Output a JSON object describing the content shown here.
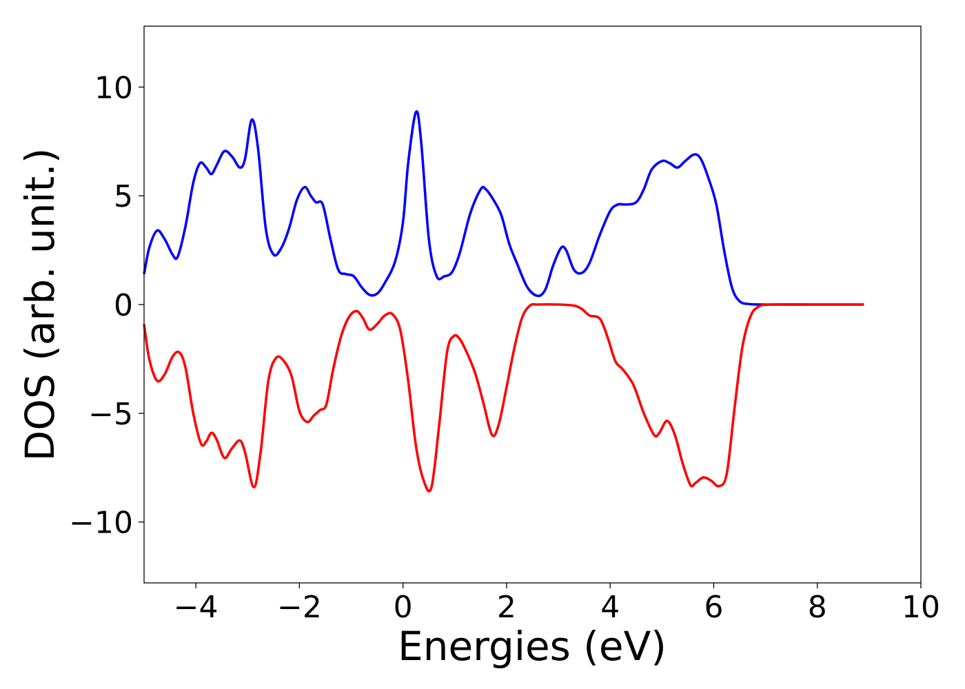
{
  "chart_data": {
    "type": "line",
    "title": "",
    "xlabel": "Energies (eV)",
    "ylabel": "DOS (arb. unit.)",
    "xlim": [
      -5,
      10
    ],
    "ylim": [
      -12.8,
      12.8
    ],
    "x_ticks": [
      -4,
      -2,
      0,
      2,
      4,
      6,
      8,
      10
    ],
    "x_tick_labels": [
      "−4",
      "−2",
      "0",
      "2",
      "4",
      "6",
      "8",
      "10"
    ],
    "y_ticks": [
      10,
      5,
      0,
      -5,
      -10
    ],
    "y_tick_labels": [
      "10",
      "5",
      "0",
      "−5",
      "−10"
    ],
    "grid": false,
    "legend": "none",
    "series": [
      {
        "color": "#0000ff",
        "points": [
          [
            -5.0,
            1.4
          ],
          [
            -4.9,
            2.6
          ],
          [
            -4.75,
            3.4
          ],
          [
            -4.6,
            3.0
          ],
          [
            -4.45,
            2.3
          ],
          [
            -4.35,
            2.2
          ],
          [
            -4.2,
            3.6
          ],
          [
            -4.05,
            5.6
          ],
          [
            -3.92,
            6.5
          ],
          [
            -3.8,
            6.3
          ],
          [
            -3.7,
            6.0
          ],
          [
            -3.6,
            6.4
          ],
          [
            -3.45,
            7.05
          ],
          [
            -3.3,
            6.8
          ],
          [
            -3.15,
            6.3
          ],
          [
            -3.05,
            6.7
          ],
          [
            -2.92,
            8.5
          ],
          [
            -2.8,
            7.2
          ],
          [
            -2.65,
            3.5
          ],
          [
            -2.5,
            2.3
          ],
          [
            -2.35,
            2.6
          ],
          [
            -2.2,
            3.5
          ],
          [
            -2.05,
            4.8
          ],
          [
            -1.9,
            5.4
          ],
          [
            -1.78,
            5.0
          ],
          [
            -1.68,
            4.7
          ],
          [
            -1.55,
            4.6
          ],
          [
            -1.4,
            3.0
          ],
          [
            -1.25,
            1.6
          ],
          [
            -1.1,
            1.4
          ],
          [
            -0.95,
            1.3
          ],
          [
            -0.8,
            0.8
          ],
          [
            -0.65,
            0.45
          ],
          [
            -0.5,
            0.5
          ],
          [
            -0.35,
            1.0
          ],
          [
            -0.15,
            2.0
          ],
          [
            0.0,
            3.8
          ],
          [
            0.1,
            6.5
          ],
          [
            0.25,
            8.85
          ],
          [
            0.35,
            7.5
          ],
          [
            0.5,
            3.0
          ],
          [
            0.65,
            1.3
          ],
          [
            0.8,
            1.3
          ],
          [
            0.95,
            1.5
          ],
          [
            1.1,
            2.4
          ],
          [
            1.3,
            4.2
          ],
          [
            1.5,
            5.3
          ],
          [
            1.6,
            5.3
          ],
          [
            1.75,
            4.8
          ],
          [
            1.9,
            4.1
          ],
          [
            2.05,
            2.8
          ],
          [
            2.2,
            1.9
          ],
          [
            2.4,
            0.8
          ],
          [
            2.6,
            0.4
          ],
          [
            2.75,
            0.7
          ],
          [
            2.9,
            1.8
          ],
          [
            3.05,
            2.6
          ],
          [
            3.15,
            2.5
          ],
          [
            3.3,
            1.6
          ],
          [
            3.45,
            1.45
          ],
          [
            3.6,
            1.9
          ],
          [
            3.8,
            3.2
          ],
          [
            4.0,
            4.3
          ],
          [
            4.15,
            4.6
          ],
          [
            4.3,
            4.6
          ],
          [
            4.5,
            4.7
          ],
          [
            4.65,
            5.3
          ],
          [
            4.8,
            6.2
          ],
          [
            5.0,
            6.6
          ],
          [
            5.15,
            6.5
          ],
          [
            5.3,
            6.3
          ],
          [
            5.45,
            6.6
          ],
          [
            5.62,
            6.9
          ],
          [
            5.75,
            6.7
          ],
          [
            5.9,
            5.8
          ],
          [
            6.05,
            4.6
          ],
          [
            6.2,
            2.5
          ],
          [
            6.35,
            0.8
          ],
          [
            6.5,
            0.15
          ],
          [
            6.7,
            0.02
          ],
          [
            7.0,
            0.0
          ],
          [
            8.0,
            0.0
          ],
          [
            8.9,
            0.0
          ]
        ]
      },
      {
        "color": "#ff0000",
        "points": [
          [
            -5.0,
            -0.9
          ],
          [
            -4.9,
            -2.5
          ],
          [
            -4.75,
            -3.5
          ],
          [
            -4.6,
            -3.2
          ],
          [
            -4.45,
            -2.4
          ],
          [
            -4.32,
            -2.2
          ],
          [
            -4.2,
            -2.9
          ],
          [
            -4.05,
            -5.0
          ],
          [
            -3.9,
            -6.4
          ],
          [
            -3.8,
            -6.3
          ],
          [
            -3.7,
            -5.9
          ],
          [
            -3.6,
            -6.2
          ],
          [
            -3.45,
            -7.05
          ],
          [
            -3.3,
            -6.6
          ],
          [
            -3.15,
            -6.25
          ],
          [
            -3.05,
            -6.8
          ],
          [
            -2.88,
            -8.4
          ],
          [
            -2.75,
            -6.8
          ],
          [
            -2.6,
            -3.5
          ],
          [
            -2.45,
            -2.45
          ],
          [
            -2.3,
            -2.6
          ],
          [
            -2.15,
            -3.3
          ],
          [
            -2.0,
            -4.9
          ],
          [
            -1.85,
            -5.4
          ],
          [
            -1.72,
            -5.1
          ],
          [
            -1.6,
            -4.85
          ],
          [
            -1.48,
            -4.6
          ],
          [
            -1.35,
            -3.0
          ],
          [
            -1.2,
            -1.5
          ],
          [
            -1.05,
            -0.6
          ],
          [
            -0.9,
            -0.3
          ],
          [
            -0.78,
            -0.6
          ],
          [
            -0.65,
            -1.15
          ],
          [
            -0.5,
            -0.9
          ],
          [
            -0.35,
            -0.5
          ],
          [
            -0.2,
            -0.45
          ],
          [
            -0.05,
            -1.2
          ],
          [
            0.1,
            -3.5
          ],
          [
            0.25,
            -6.5
          ],
          [
            0.4,
            -8.1
          ],
          [
            0.55,
            -8.4
          ],
          [
            0.7,
            -5.5
          ],
          [
            0.85,
            -2.2
          ],
          [
            0.98,
            -1.45
          ],
          [
            1.1,
            -1.6
          ],
          [
            1.25,
            -2.3
          ],
          [
            1.4,
            -3.2
          ],
          [
            1.55,
            -4.5
          ],
          [
            1.72,
            -6.0
          ],
          [
            1.85,
            -5.5
          ],
          [
            2.0,
            -3.8
          ],
          [
            2.15,
            -2.0
          ],
          [
            2.3,
            -0.6
          ],
          [
            2.45,
            -0.05
          ],
          [
            2.6,
            0.0
          ],
          [
            3.0,
            0.0
          ],
          [
            3.3,
            -0.05
          ],
          [
            3.45,
            -0.2
          ],
          [
            3.6,
            -0.5
          ],
          [
            3.8,
            -0.65
          ],
          [
            3.95,
            -1.5
          ],
          [
            4.1,
            -2.6
          ],
          [
            4.25,
            -3.0
          ],
          [
            4.45,
            -3.7
          ],
          [
            4.65,
            -5.0
          ],
          [
            4.85,
            -6.0
          ],
          [
            4.95,
            -5.9
          ],
          [
            5.1,
            -5.35
          ],
          [
            5.25,
            -6.0
          ],
          [
            5.4,
            -7.3
          ],
          [
            5.55,
            -8.3
          ],
          [
            5.65,
            -8.2
          ],
          [
            5.8,
            -7.95
          ],
          [
            5.95,
            -8.1
          ],
          [
            6.1,
            -8.35
          ],
          [
            6.25,
            -7.8
          ],
          [
            6.4,
            -4.8
          ],
          [
            6.55,
            -2.0
          ],
          [
            6.7,
            -0.6
          ],
          [
            6.85,
            -0.12
          ],
          [
            7.1,
            0.0
          ],
          [
            8.0,
            0.0
          ],
          [
            8.9,
            0.0
          ]
        ]
      }
    ]
  }
}
